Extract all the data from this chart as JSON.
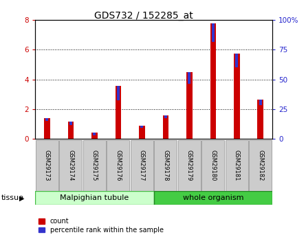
{
  "title": "GDS732 / 152285_at",
  "samples": [
    "GSM29173",
    "GSM29174",
    "GSM29175",
    "GSM29176",
    "GSM29177",
    "GSM29178",
    "GSM29179",
    "GSM29180",
    "GSM29181",
    "GSM29182"
  ],
  "count_values": [
    1.4,
    1.15,
    0.4,
    3.55,
    0.85,
    1.55,
    4.5,
    7.8,
    5.75,
    2.65
  ],
  "percentile_values_left_scale": [
    0.22,
    0.22,
    0.18,
    0.95,
    0.13,
    0.18,
    0.8,
    1.25,
    0.95,
    0.4
  ],
  "bar_color_red": "#cc0000",
  "bar_color_blue": "#3333cc",
  "ylim_left": [
    0,
    8
  ],
  "ylim_right": [
    0,
    100
  ],
  "yticks_left": [
    0,
    2,
    4,
    6,
    8
  ],
  "yticks_right": [
    0,
    25,
    50,
    75,
    100
  ],
  "ytick_labels_right": [
    "0",
    "25",
    "50",
    "75",
    "100%"
  ],
  "tissue_group1_label": "Malpighian tubule",
  "tissue_group1_n": 5,
  "tissue_group1_color": "#ccffcc",
  "tissue_group1_edge": "#44bb44",
  "tissue_group2_label": "whole organism",
  "tissue_group2_n": 5,
  "tissue_group2_color": "#44cc44",
  "tissue_group2_edge": "#228822",
  "legend_count_label": "count",
  "legend_percentile_label": "percentile rank within the sample",
  "tissue_label": "tissue",
  "bar_width": 0.5,
  "red_bar_width": 0.25,
  "blue_bar_width": 0.12,
  "tick_label_color_left": "#cc0000",
  "tick_label_color_right": "#2222cc",
  "tick_box_color": "#cccccc",
  "tick_box_edge": "#999999",
  "title_fontsize": 10,
  "label_fontsize": 7.5,
  "tick_fontsize": 7.5
}
